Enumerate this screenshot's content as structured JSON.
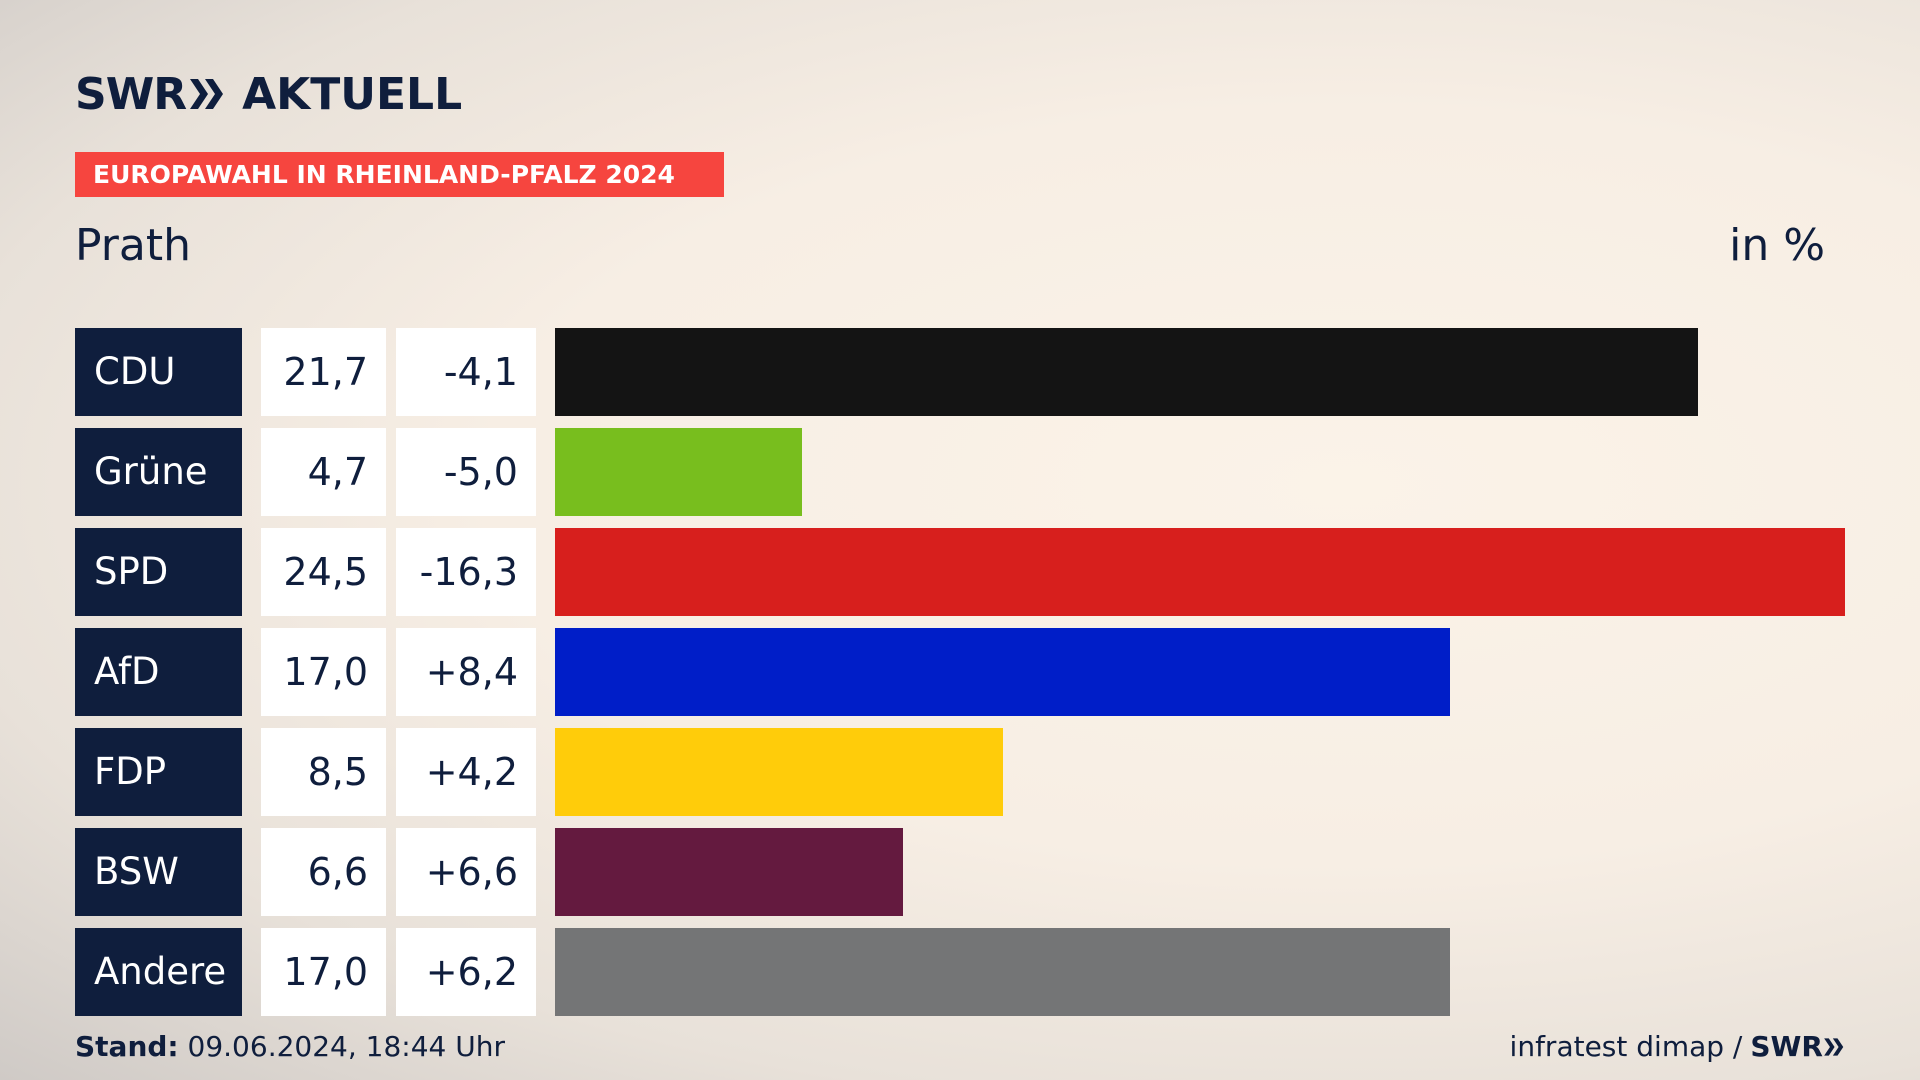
{
  "header": {
    "logo_swr": "SWR",
    "logo_aktuell": "AKTUELL",
    "banner": "EUROPAWAHL IN RHEINLAND-PFALZ 2024",
    "subtitle": "Prath",
    "unit": "in %"
  },
  "footer": {
    "stand_label": "Stand:",
    "stand_value": "09.06.2024, 18:44 Uhr",
    "source": "infratest dimap /",
    "source_logo": "SWR"
  },
  "colors": {
    "navy": "#0f1e3d",
    "banner": "#f6453f",
    "chevron": "#0f1e3d"
  },
  "chart_data": {
    "type": "bar",
    "orientation": "horizontal",
    "title": "EUROPAWAHL IN RHEINLAND-PFALZ 2024",
    "subtitle": "Prath",
    "unit": "in %",
    "xlim": [
      0,
      24.5
    ],
    "categories": [
      "CDU",
      "Grüne",
      "SPD",
      "AfD",
      "FDP",
      "BSW",
      "Andere"
    ],
    "values": [
      21.7,
      4.7,
      24.5,
      17.0,
      8.5,
      6.6,
      17.0
    ],
    "value_labels": [
      "21,7",
      "4,7",
      "24,5",
      "17,0",
      "8,5",
      "6,6",
      "17,0"
    ],
    "diff_labels": [
      "-4,1",
      "-5,0",
      "-16,3",
      "+8,4",
      "+4,2",
      "+6,6",
      "+6,2"
    ],
    "diffs": [
      -4.1,
      -5.0,
      -16.3,
      8.4,
      4.2,
      6.6,
      6.2
    ],
    "bar_colors": [
      "#141414",
      "#78be1e",
      "#d71f1d",
      "#001ec8",
      "#ffcc0a",
      "#641a3f",
      "#747576"
    ]
  }
}
